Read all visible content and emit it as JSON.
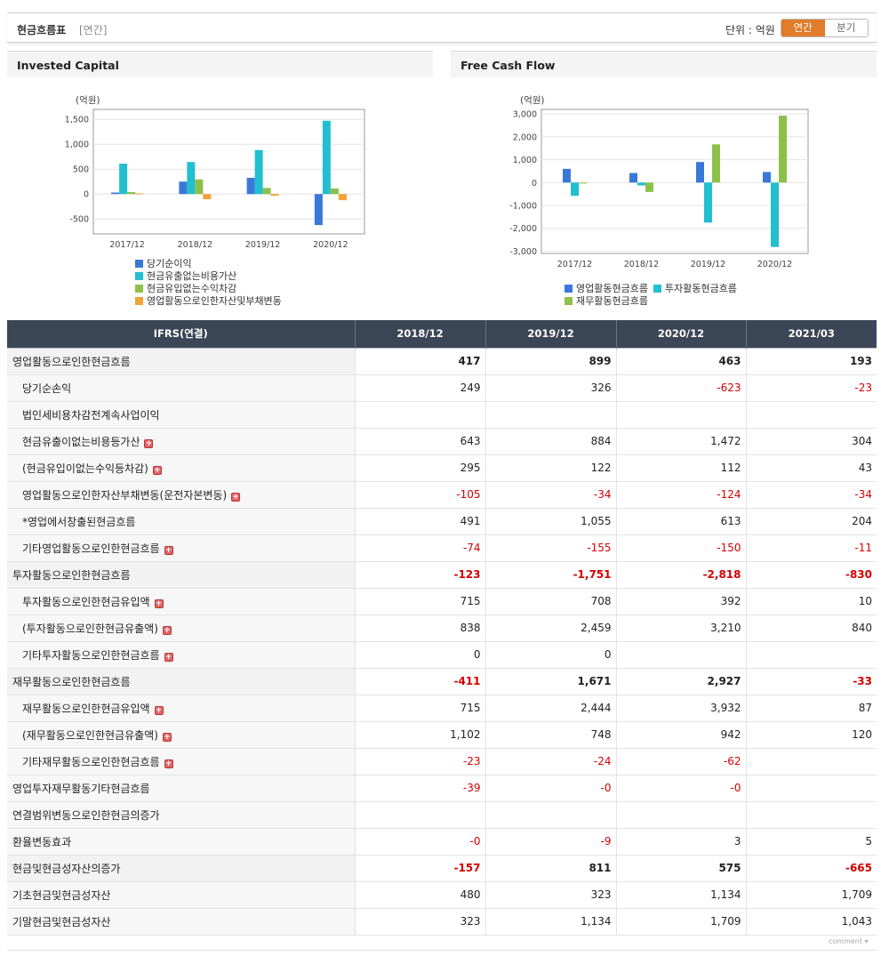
{
  "header": {
    "title": "현금흐름표",
    "period": "[연간]",
    "unit": "단위 : 억원",
    "tab_annual": "연간",
    "tab_quarter": "분기"
  },
  "charts": {
    "left_title": "Invested Capital",
    "right_title": "Free Cash Flow"
  },
  "chart_data": [
    {
      "type": "bar",
      "title": "Invested Capital",
      "ylabel": "(억원)",
      "ylim": [
        -800,
        1700
      ],
      "yticks": [
        -500,
        0,
        500,
        1000,
        1500
      ],
      "ytick_labels": [
        "-500",
        "0",
        "500",
        "1,000",
        "1,500"
      ],
      "categories": [
        "2017/12",
        "2018/12",
        "2019/12",
        "2020/12"
      ],
      "grid": true,
      "legend": "bottom",
      "series": [
        {
          "name": "당기순이익",
          "color": "#3a78d8",
          "values": [
            30,
            249,
            326,
            -623
          ]
        },
        {
          "name": "현금유출없는비용가산",
          "color": "#22bfd0",
          "values": [
            610,
            643,
            884,
            1472
          ]
        },
        {
          "name": "현금유입없는수익차감",
          "color": "#8dc04a",
          "values": [
            40,
            295,
            122,
            112
          ]
        },
        {
          "name": "영업활동으로인한자산및부채변동",
          "color": "#f4a234",
          "values": [
            15,
            -105,
            -34,
            -124
          ]
        }
      ]
    },
    {
      "type": "bar",
      "title": "Free Cash Flow",
      "ylabel": "(억원)",
      "ylim": [
        -3100,
        3200
      ],
      "yticks": [
        -3000,
        -2000,
        -1000,
        0,
        1000,
        2000,
        3000
      ],
      "ytick_labels": [
        "-3,000",
        "-2,000",
        "-1,000",
        "0",
        "1,000",
        "2,000",
        "3,000"
      ],
      "categories": [
        "2017/12",
        "2018/12",
        "2019/12",
        "2020/12"
      ],
      "grid": true,
      "legend": "bottom",
      "series": [
        {
          "name": "영업활동현금흐름",
          "color": "#3a78d8",
          "values": [
            600,
            417,
            899,
            463
          ]
        },
        {
          "name": "투자활동현금흐름",
          "color": "#22bfd0",
          "values": [
            -580,
            -123,
            -1751,
            -2818
          ]
        },
        {
          "name": "재무활동현금흐름",
          "color": "#8dc04a",
          "values": [
            -20,
            -411,
            1671,
            2927
          ]
        }
      ]
    }
  ],
  "table": {
    "header": [
      "IFRS(연결)",
      "2018/12",
      "2019/12",
      "2020/12",
      "2021/03"
    ],
    "rows": [
      {
        "label": "영업활동으로인한현금흐름",
        "major": true,
        "plus": false,
        "values": [
          "417",
          "899",
          "463",
          "193"
        ]
      },
      {
        "label": "당기순손익",
        "major": false,
        "plus": false,
        "values": [
          "249",
          "326",
          "-623",
          "-23"
        ]
      },
      {
        "label": "법인세비용차감전계속사업이익",
        "major": false,
        "plus": false,
        "values": [
          "",
          "",
          "",
          ""
        ]
      },
      {
        "label": "현금유출이없는비용등가산",
        "major": false,
        "plus": true,
        "values": [
          "643",
          "884",
          "1,472",
          "304"
        ]
      },
      {
        "label": "(현금유입이없는수익등차감)",
        "major": false,
        "plus": true,
        "values": [
          "295",
          "122",
          "112",
          "43"
        ]
      },
      {
        "label": "영업활동으로인한자산부채변동(운전자본변동)",
        "major": false,
        "plus": true,
        "values": [
          "-105",
          "-34",
          "-124",
          "-34"
        ]
      },
      {
        "label": "*영업에서창출된현금흐름",
        "major": false,
        "plus": false,
        "values": [
          "491",
          "1,055",
          "613",
          "204"
        ]
      },
      {
        "label": "기타영업활동으로인한현금흐름",
        "major": false,
        "plus": true,
        "values": [
          "-74",
          "-155",
          "-150",
          "-11"
        ]
      },
      {
        "label": "투자활동으로인한현금흐름",
        "major": true,
        "plus": false,
        "values": [
          "-123",
          "-1,751",
          "-2,818",
          "-830"
        ]
      },
      {
        "label": "투자활동으로인한현금유입액",
        "major": false,
        "plus": true,
        "values": [
          "715",
          "708",
          "392",
          "10"
        ]
      },
      {
        "label": "(투자활동으로인한현금유출액)",
        "major": false,
        "plus": true,
        "values": [
          "838",
          "2,459",
          "3,210",
          "840"
        ]
      },
      {
        "label": "기타투자활동으로인한현금흐름",
        "major": false,
        "plus": true,
        "values": [
          "0",
          "0",
          "",
          ""
        ]
      },
      {
        "label": "재무활동으로인한현금흐름",
        "major": true,
        "plus": false,
        "values": [
          "-411",
          "1,671",
          "2,927",
          "-33"
        ]
      },
      {
        "label": "재무활동으로인한현금유입액",
        "major": false,
        "plus": true,
        "values": [
          "715",
          "2,444",
          "3,932",
          "87"
        ]
      },
      {
        "label": "(재무활동으로인한현금유출액)",
        "major": false,
        "plus": true,
        "values": [
          "1,102",
          "748",
          "942",
          "120"
        ]
      },
      {
        "label": "기타재무활동으로인한현금흐름",
        "major": false,
        "plus": true,
        "values": [
          "-23",
          "-24",
          "-62",
          ""
        ]
      },
      {
        "label": "영업투자재무활동기타현금흐름",
        "major": "flat",
        "plus": false,
        "values": [
          "-39",
          "-0",
          "-0",
          ""
        ]
      },
      {
        "label": "연결범위변동으로인한현금의증가",
        "major": "flat",
        "plus": false,
        "values": [
          "",
          "",
          "",
          ""
        ]
      },
      {
        "label": "환율변동효과",
        "major": "flat",
        "plus": false,
        "values": [
          "-0",
          "-9",
          "3",
          "5"
        ]
      },
      {
        "label": "현금및현금성자산의증가",
        "major": true,
        "plus": false,
        "values": [
          "-157",
          "811",
          "575",
          "-665"
        ]
      },
      {
        "label": "기초현금및현금성자산",
        "major": "flat",
        "plus": false,
        "values": [
          "480",
          "323",
          "1,134",
          "1,709"
        ]
      },
      {
        "label": "기말현금및현금성자산",
        "major": "flat",
        "plus": false,
        "values": [
          "323",
          "1,134",
          "1,709",
          "1,043"
        ]
      }
    ]
  },
  "footer": {
    "comment": "comment ▾"
  }
}
